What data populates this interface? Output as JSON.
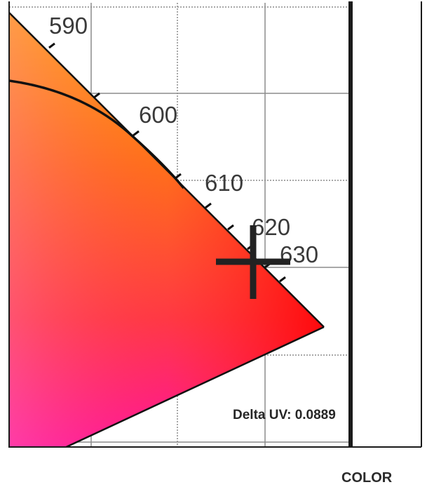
{
  "diagram": {
    "title": "",
    "wavelength_labels": [
      "590",
      "600",
      "610",
      "620",
      "630"
    ],
    "readout": {
      "label": "Delta UV:",
      "value": "0.0889",
      "text": "Delta UV: 0.0889"
    },
    "footer_label": "COLOR",
    "cursor": "crosshair-icon",
    "colors": {
      "yellow": "#ffc000",
      "orange": "#ff6a00",
      "red": "#ff0000",
      "pink": "#ff5070",
      "magenta": "#ff10b0",
      "frame": "#1a1a1a",
      "grid": "#8c8c8c",
      "locus_stroke": "#111111"
    }
  }
}
